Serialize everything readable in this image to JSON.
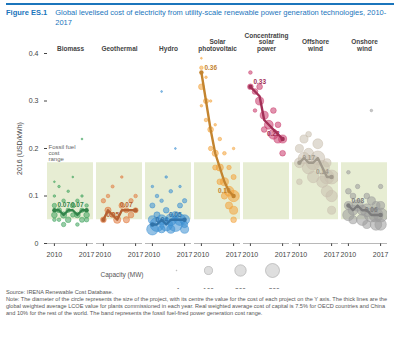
{
  "chart_data": {
    "type": "scatter",
    "title": "Figure ES.1",
    "subtitle": "Global levelised cost of electricity from utility-scale renewable power generation technologies, 2010-2017",
    "y_label": "2016 (USD/kWh)",
    "ylim": [
      0,
      0.4
    ],
    "yticks": [
      0,
      0.1,
      0.2,
      0.3,
      0.4
    ],
    "xlim": [
      2008.5,
      2018.5
    ],
    "xticks": [
      2010,
      2017
    ],
    "data_labels": true,
    "band": {
      "name": "Fossil fuel cost range",
      "range": [
        0.05,
        0.17
      ],
      "color": "#dfe7c4"
    },
    "size_legend": {
      "title": "Capacity (MW)",
      "range": [
        0,
        300
      ],
      "values": [
        {
          "value": 1,
          "label": "≥1"
        },
        100,
        200,
        {
          "value": 300,
          "label": "≥300"
        }
      ]
    },
    "series": [
      {
        "name": "Biomass",
        "color": "#3fa35c",
        "x": [
          2010,
          2010,
          2010,
          2010,
          2010,
          2011,
          2011,
          2011,
          2012,
          2012,
          2012,
          2013,
          2013,
          2013,
          2014,
          2014,
          2014,
          2015,
          2015,
          2015,
          2016,
          2016,
          2016,
          2016,
          2017,
          2017,
          2017
        ],
        "values": [
          0.06,
          0.08,
          0.05,
          0.1,
          0.13,
          0.07,
          0.05,
          0.12,
          0.06,
          0.09,
          0.04,
          0.07,
          0.05,
          0.11,
          0.08,
          0.06,
          0.14,
          0.06,
          0.09,
          0.04,
          0.07,
          0.05,
          0.1,
          0.22,
          0.06,
          0.08,
          0.05
        ],
        "capacity": [
          50,
          30,
          20,
          10,
          5,
          40,
          20,
          10,
          60,
          20,
          30,
          30,
          50,
          10,
          40,
          30,
          5,
          50,
          20,
          20,
          30,
          40,
          10,
          5,
          50,
          20,
          30
        ],
        "weighted_average": {
          "x": [
            2010,
            2011,
            2012,
            2013,
            2014,
            2015,
            2016,
            2017
          ],
          "values": [
            0.07,
            0.07,
            0.06,
            0.07,
            0.07,
            0.06,
            0.07,
            0.07
          ],
          "value_labels": [
            "0.07",
            null,
            null,
            null,
            null,
            null,
            null,
            "0.07"
          ]
        }
      },
      {
        "name": "Geothermal",
        "color": "#e07a3f",
        "x": [
          2010,
          2010,
          2011,
          2011,
          2012,
          2012,
          2013,
          2014,
          2014,
          2015,
          2015,
          2016,
          2016,
          2017,
          2017
        ],
        "values": [
          0.05,
          0.09,
          0.07,
          0.1,
          0.06,
          0.12,
          0.05,
          0.08,
          0.14,
          0.07,
          0.05,
          0.09,
          0.06,
          0.07,
          0.1
        ],
        "capacity": [
          50,
          30,
          60,
          20,
          40,
          15,
          80,
          50,
          10,
          40,
          60,
          30,
          50,
          40,
          20
        ],
        "weighted_average": {
          "x": [
            2010,
            2011,
            2012,
            2013,
            2014,
            2015,
            2016,
            2017
          ],
          "values": [
            0.05,
            0.07,
            0.06,
            0.05,
            0.07,
            0.07,
            0.07,
            0.07
          ],
          "value_labels": [
            "0.05",
            null,
            null,
            null,
            null,
            null,
            null,
            "0.07"
          ]
        }
      },
      {
        "name": "Hydro",
        "color": "#3d8fd1",
        "x": [
          2010,
          2010,
          2010,
          2010,
          2011,
          2011,
          2011,
          2012,
          2012,
          2012,
          2012,
          2013,
          2013,
          2013,
          2014,
          2014,
          2014,
          2015,
          2015,
          2015,
          2016,
          2016,
          2016,
          2017,
          2017,
          2017,
          2017
        ],
        "values": [
          0.03,
          0.05,
          0.08,
          0.12,
          0.04,
          0.06,
          0.1,
          0.05,
          0.03,
          0.32,
          0.09,
          0.04,
          0.07,
          0.14,
          0.05,
          0.03,
          0.11,
          0.04,
          0.06,
          0.2,
          0.05,
          0.08,
          0.12,
          0.05,
          0.03,
          0.09,
          0.04
        ],
        "capacity": [
          200,
          100,
          40,
          10,
          300,
          60,
          20,
          150,
          80,
          5,
          20,
          250,
          50,
          10,
          200,
          100,
          20,
          300,
          80,
          5,
          200,
          40,
          10,
          150,
          100,
          30,
          60
        ],
        "weighted_average": {
          "x": [
            2010,
            2011,
            2012,
            2013,
            2014,
            2015,
            2016,
            2017
          ],
          "values": [
            0.04,
            0.04,
            0.05,
            0.04,
            0.05,
            0.05,
            0.05,
            0.05
          ],
          "value_labels": [
            "0.04",
            null,
            null,
            null,
            null,
            null,
            null,
            "0.05"
          ]
        }
      },
      {
        "name": "Solar photovoltaic",
        "color": "#f2a33a",
        "x": [
          2010,
          2010,
          2010,
          2010,
          2011,
          2011,
          2011,
          2012,
          2012,
          2012,
          2013,
          2013,
          2013,
          2014,
          2014,
          2014,
          2015,
          2015,
          2015,
          2016,
          2016,
          2016,
          2017,
          2017,
          2017,
          2017,
          2017
        ],
        "values": [
          0.37,
          0.33,
          0.29,
          0.39,
          0.3,
          0.26,
          0.35,
          0.24,
          0.2,
          0.3,
          0.19,
          0.16,
          0.25,
          0.16,
          0.13,
          0.22,
          0.13,
          0.1,
          0.19,
          0.11,
          0.08,
          0.16,
          0.1,
          0.07,
          0.05,
          0.14,
          0.2
        ],
        "capacity": [
          20,
          50,
          10,
          5,
          40,
          20,
          10,
          50,
          30,
          10,
          60,
          40,
          10,
          80,
          50,
          20,
          100,
          60,
          20,
          150,
          80,
          30,
          200,
          100,
          50,
          40,
          10
        ],
        "weighted_average": {
          "x": [
            2010,
            2011,
            2012,
            2013,
            2014,
            2015,
            2016,
            2017
          ],
          "values": [
            0.36,
            0.3,
            0.24,
            0.19,
            0.16,
            0.13,
            0.11,
            0.1
          ],
          "value_labels": [
            "0.36",
            null,
            null,
            null,
            null,
            null,
            null,
            "0.10"
          ]
        }
      },
      {
        "name": "Concentrating solar power",
        "color": "#c93a6b",
        "x": [
          2010,
          2010,
          2011,
          2011,
          2012,
          2012,
          2013,
          2013,
          2014,
          2015,
          2015,
          2016,
          2016,
          2017,
          2017
        ],
        "values": [
          0.33,
          0.36,
          0.32,
          0.28,
          0.3,
          0.33,
          0.27,
          0.24,
          0.25,
          0.23,
          0.28,
          0.22,
          0.25,
          0.22,
          0.19
        ],
        "capacity": [
          50,
          20,
          50,
          20,
          100,
          50,
          100,
          50,
          120,
          150,
          50,
          100,
          50,
          100,
          50
        ],
        "weighted_average": {
          "x": [
            2010,
            2011,
            2012,
            2013,
            2014,
            2015,
            2016,
            2017
          ],
          "values": [
            0.33,
            0.32,
            0.31,
            0.26,
            0.25,
            0.24,
            0.23,
            0.22
          ],
          "value_labels": [
            "0.33",
            null,
            null,
            null,
            null,
            null,
            null,
            "0.22"
          ]
        }
      },
      {
        "name": "Offshore wind",
        "color": "#c8bfae",
        "x": [
          2010,
          2010,
          2010,
          2011,
          2011,
          2012,
          2012,
          2012,
          2013,
          2013,
          2014,
          2014,
          2015,
          2015,
          2016,
          2016,
          2016,
          2017,
          2017,
          2017
        ],
        "values": [
          0.17,
          0.2,
          0.13,
          0.18,
          0.22,
          0.16,
          0.19,
          0.23,
          0.17,
          0.14,
          0.18,
          0.21,
          0.16,
          0.13,
          0.14,
          0.11,
          0.17,
          0.14,
          0.1,
          0.07
        ],
        "capacity": [
          150,
          100,
          50,
          200,
          100,
          250,
          150,
          50,
          300,
          200,
          300,
          150,
          300,
          200,
          300,
          200,
          100,
          300,
          200,
          100
        ],
        "weighted_average": {
          "x": [
            2010,
            2011,
            2012,
            2013,
            2014,
            2015,
            2016,
            2017
          ],
          "values": [
            0.17,
            0.18,
            0.17,
            0.17,
            0.18,
            0.16,
            0.14,
            0.14
          ],
          "value_labels": [
            "0.17",
            null,
            null,
            null,
            null,
            null,
            null,
            "0.14"
          ]
        }
      },
      {
        "name": "Onshore wind",
        "color": "#9a9a9a",
        "x": [
          2010,
          2010,
          2010,
          2010,
          2011,
          2011,
          2011,
          2012,
          2012,
          2013,
          2013,
          2014,
          2014,
          2014,
          2015,
          2015,
          2015,
          2016,
          2016,
          2016,
          2017,
          2017,
          2017,
          2017
        ],
        "values": [
          0.08,
          0.06,
          0.11,
          0.15,
          0.07,
          0.1,
          0.05,
          0.08,
          0.12,
          0.07,
          0.05,
          0.07,
          0.1,
          0.04,
          0.06,
          0.09,
          0.28,
          0.06,
          0.04,
          0.08,
          0.06,
          0.04,
          0.08,
          0.12
        ],
        "capacity": [
          100,
          200,
          50,
          20,
          150,
          50,
          100,
          200,
          30,
          150,
          200,
          250,
          50,
          100,
          300,
          100,
          10,
          300,
          200,
          100,
          300,
          200,
          100,
          30
        ],
        "weighted_average": {
          "x": [
            2010,
            2011,
            2012,
            2013,
            2014,
            2015,
            2016,
            2017
          ],
          "values": [
            0.08,
            0.07,
            0.08,
            0.07,
            0.07,
            0.06,
            0.06,
            0.06
          ],
          "value_labels": [
            "0.08",
            null,
            null,
            null,
            null,
            null,
            null,
            "0.06"
          ]
        }
      }
    ],
    "source": "Source: IRENA Renewable Cost Database.",
    "note": "Note: The diameter of the circle represents the size of the project, with its centre the value for the cost of each project on the Y axis. The thick lines are the global weighted average LCOE value for plants commissioned in each year. Real weighted average cost of capital is 7.5% for OECD countries and China and 10% for the rest of the world. The band represents the fossil fuel-fired power generation cost range."
  }
}
